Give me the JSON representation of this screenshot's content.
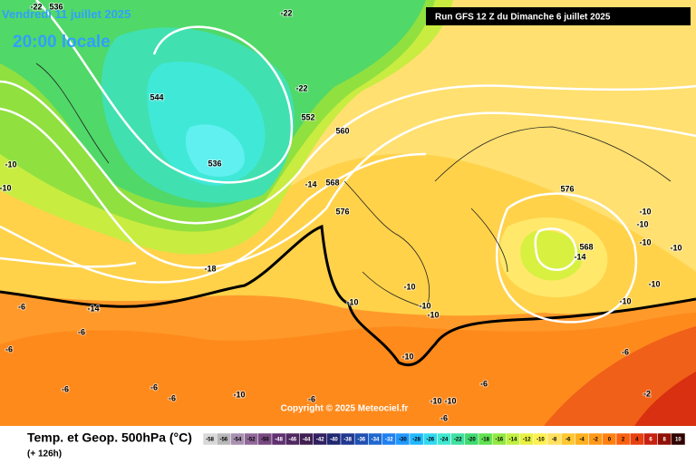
{
  "header": {
    "valid": "Vendredi 11 juillet 2025",
    "local": "20:00 locale",
    "run": "Run GFS 12 Z du Dimanche 6 juillet 2025"
  },
  "map": {
    "labels": [
      "-22",
      "536",
      "-22",
      "544",
      "-22",
      "552",
      "560",
      "536",
      "-14",
      "568",
      "576",
      "-18",
      "-14",
      "-10",
      "-10",
      "-10",
      "-10",
      "-10",
      "-10",
      "-10",
      "-10",
      "-10",
      "-10",
      "576",
      "-10",
      "-10",
      "568",
      "-14",
      "-10",
      "-10",
      "-10",
      "-10",
      "-6",
      "-6",
      "-6",
      "-6",
      "-6",
      "-6",
      "-6",
      "-6",
      "-6",
      "-6",
      "-2"
    ],
    "copyright": "Copyright © 2025 Meteociel.fr"
  },
  "footer": {
    "title": "Temp. et Geop. 500hPa (°C)",
    "lead": "(+ 126h)"
  },
  "colorbar": {
    "ticks": [
      -58,
      -56,
      -54,
      -52,
      -50,
      -48,
      -46,
      -44,
      -42,
      -40,
      -38,
      -36,
      -34,
      -32,
      -30,
      -28,
      -26,
      -24,
      -22,
      -20,
      -18,
      -16,
      -14,
      -12,
      -10,
      -8,
      -6,
      -4,
      -2,
      0,
      2,
      4,
      6,
      8,
      10
    ],
    "colors": [
      "#d8d8d8",
      "#b8b8b8",
      "#a890b0",
      "#906898",
      "#784880",
      "#603070",
      "#502860",
      "#402050",
      "#302060",
      "#202870",
      "#203890",
      "#2050b0",
      "#2068d0",
      "#2080f0",
      "#2098ff",
      "#20b8ff",
      "#30d8f0",
      "#40e8d0",
      "#40e0a0",
      "#40d870",
      "#60e050",
      "#90e840",
      "#c0f040",
      "#e8f040",
      "#fff050",
      "#ffe060",
      "#ffc830",
      "#ffb020",
      "#ff9818",
      "#ff8010",
      "#f86010",
      "#e84010",
      "#c82010",
      "#901008",
      "#300000"
    ]
  }
}
